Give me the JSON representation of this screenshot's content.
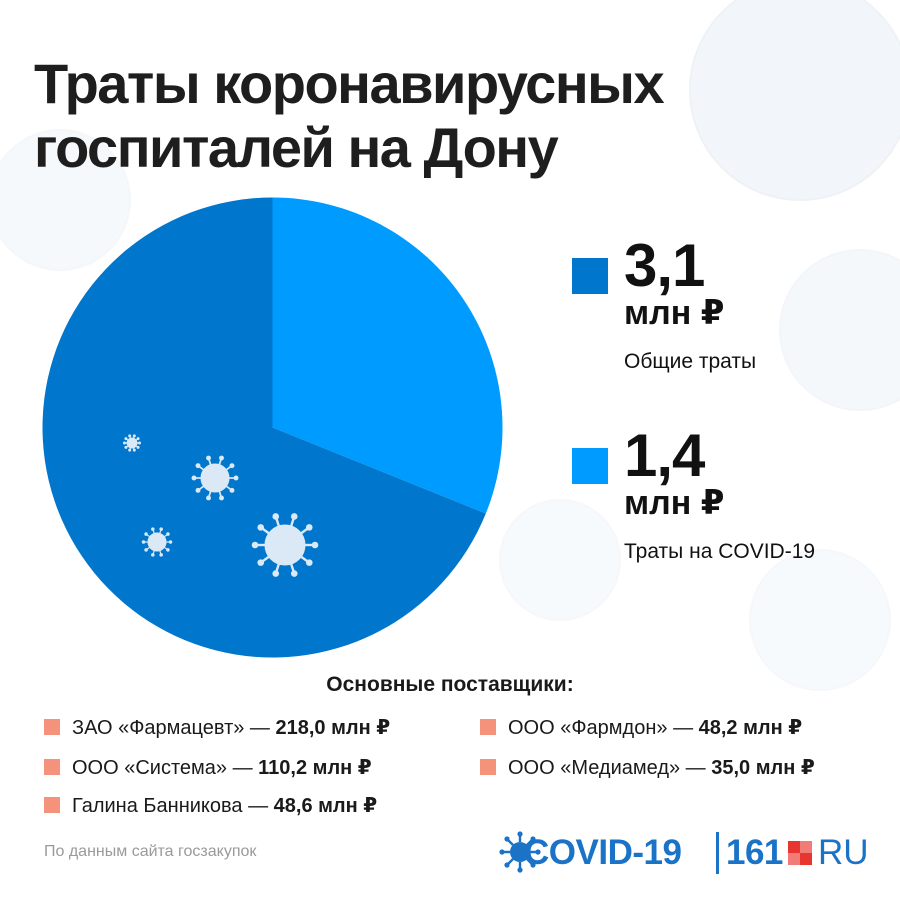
{
  "title": {
    "line1": "Траты коронавирусных",
    "line2": "госпиталей на Дону"
  },
  "chart_data": {
    "type": "pie",
    "slices": [
      {
        "label": "Общие траты",
        "value": 3.1,
        "unit": "млн ₽",
        "color": "#0077cc"
      },
      {
        "label": "Траты на COVID-19",
        "value": 1.4,
        "unit": "млн ₽",
        "color": "#009bff"
      }
    ],
    "pie_values": [
      {
        "name": "Общие траты",
        "share": 0.689,
        "color": "#0077cc"
      },
      {
        "name": "Траты на COVID-19",
        "share": 0.311,
        "color": "#009bff"
      }
    ],
    "legend": [
      {
        "value": "3,1",
        "unit": "млн ₽",
        "label": "Общие траты",
        "color": "#0077cc"
      },
      {
        "value": "1,4",
        "unit": "млн ₽",
        "label": "Траты на COVID-19",
        "color": "#009bff"
      }
    ],
    "legend_position": "right"
  },
  "suppliers": {
    "heading": "Основные поставщики:",
    "square_color": "#f4927c",
    "items": [
      {
        "name": "ЗАО «Фармацевт» — ",
        "amount": "218,0 млн ₽"
      },
      {
        "name": "ООО «Система» — ",
        "amount": "110,2 млн ₽"
      },
      {
        "name": "Галина Банникова — ",
        "amount": "48,6 млн ₽"
      },
      {
        "name": "ООО «Фармдон» — ",
        "amount": "48,2 млн ₽"
      },
      {
        "name": "ООО «Медиамед» — ",
        "amount": "35,0 млн ₽"
      }
    ]
  },
  "source": "По данным сайта госзакупок",
  "brand": {
    "covid": "COVID-19",
    "site_number": "161",
    "site_suffix": "RU",
    "color": "#1a73c6",
    "accent": "#e8352f",
    "icon": "virus-icon"
  },
  "colors": {
    "decor_virus": "#e6eef6"
  }
}
